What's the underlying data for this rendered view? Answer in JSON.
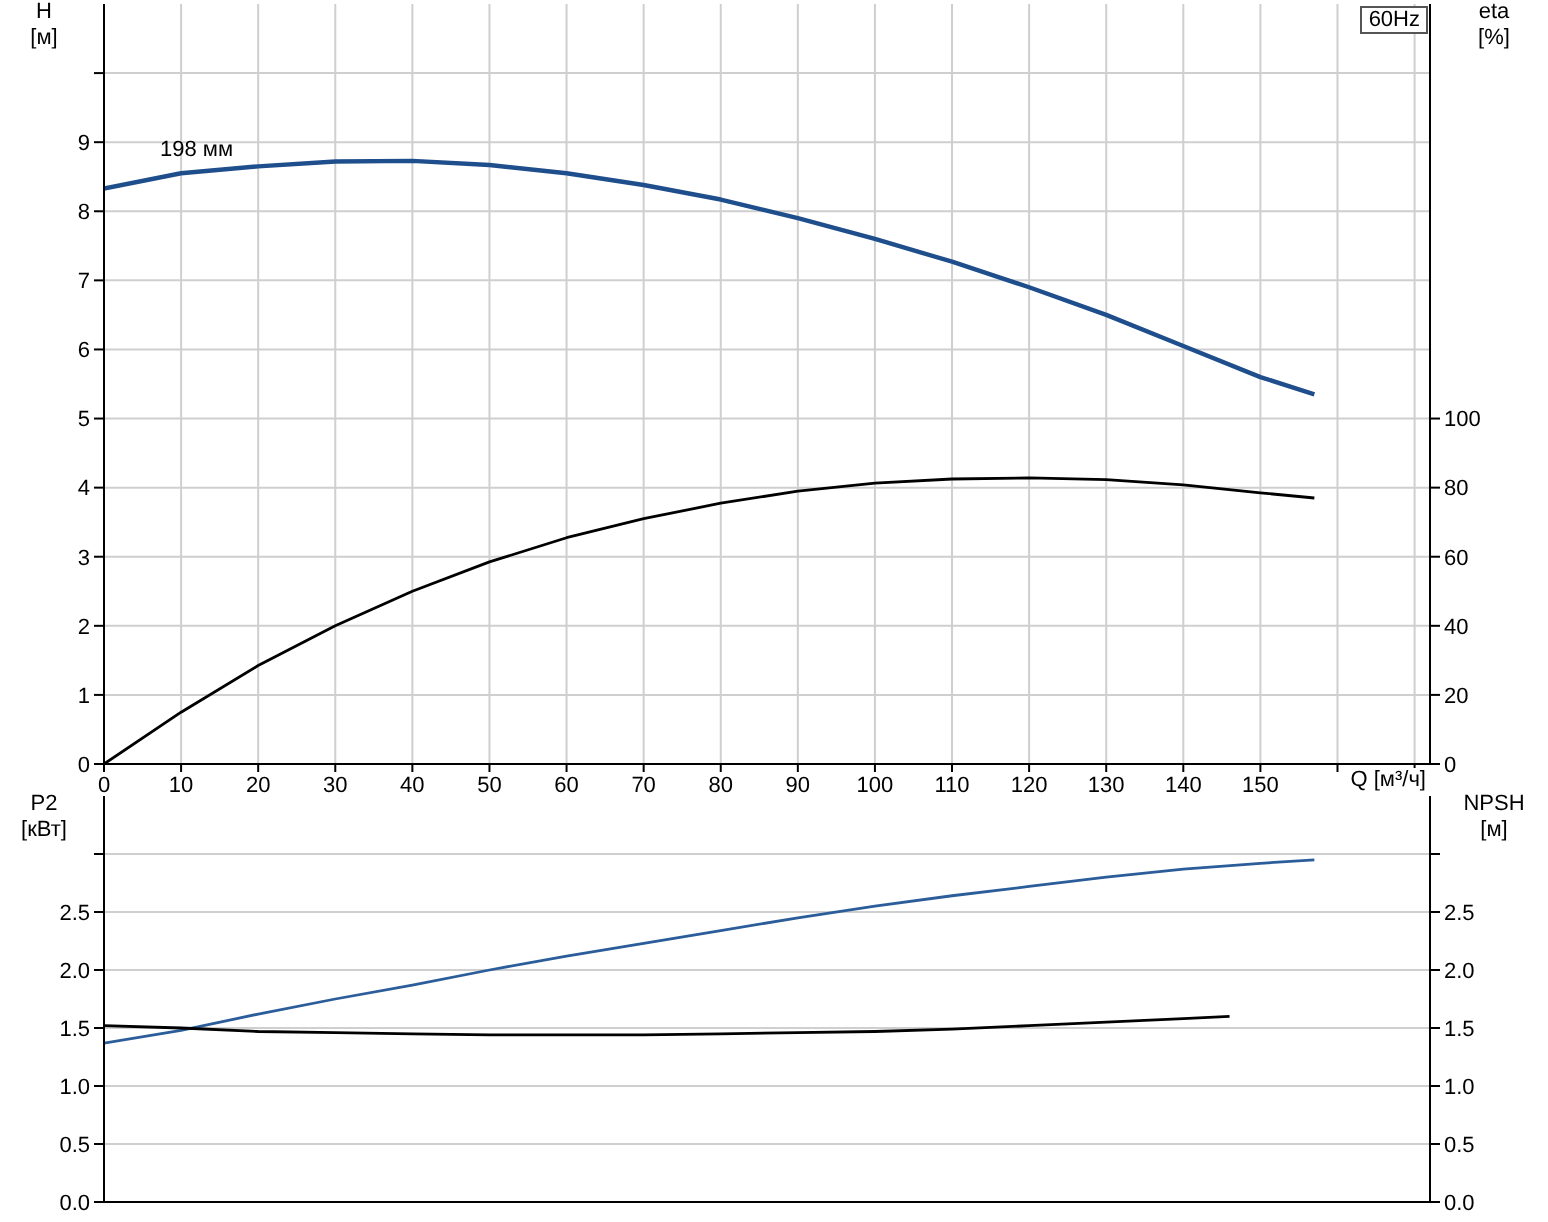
{
  "chart_data": [
    {
      "type": "line",
      "title": "60Hz",
      "xlabel": "Q [м³/ч]",
      "ylabel": "H [м]",
      "y2label": "eta [%]",
      "annotations": [
        {
          "text": "198 мм",
          "x": 12,
          "y": 8.65
        }
      ],
      "xlim": [
        0,
        172
      ],
      "xticks": [
        0,
        10,
        20,
        30,
        40,
        50,
        60,
        70,
        80,
        90,
        100,
        110,
        120,
        130,
        140,
        150,
        {
          "value": 160,
          "label": null
        },
        {
          "value": 170,
          "label": null
        }
      ],
      "ylim": [
        0,
        11
      ],
      "yticks": [
        0,
        1,
        2,
        3,
        4,
        5,
        6,
        7,
        8,
        9,
        {
          "value": 10,
          "label": null
        }
      ],
      "y2lim": [
        0,
        220
      ],
      "y2ticks": [
        0,
        20,
        40,
        60,
        80,
        100
      ],
      "grid": true,
      "marker": "none",
      "line_style": "solid",
      "series": [
        {
          "color": "#1f4e8c",
          "x": [
            0,
            10,
            20,
            30,
            40,
            50,
            60,
            70,
            80,
            90,
            100,
            110,
            120,
            130,
            140,
            150,
            157
          ],
          "values": [
            8.33,
            8.55,
            8.65,
            8.72,
            8.73,
            8.67,
            8.55,
            8.38,
            8.17,
            7.9,
            7.6,
            7.27,
            6.9,
            6.5,
            6.05,
            5.6,
            5.35
          ]
        },
        {
          "color": "#000000",
          "axis": "y2",
          "x": [
            0,
            10,
            20,
            30,
            40,
            50,
            60,
            70,
            80,
            90,
            100,
            110,
            120,
            130,
            140,
            150,
            157
          ],
          "values": [
            0,
            15,
            28.5,
            40,
            50,
            58.5,
            65.5,
            71,
            75.5,
            79,
            81.3,
            82.5,
            82.8,
            82.3,
            80.8,
            78.5,
            77
          ]
        }
      ]
    },
    {
      "type": "line",
      "ylabel": "P2 [кВт]",
      "y2label": "NPSH [м]",
      "xlim": [
        0,
        172
      ],
      "xticks": [
        0,
        10,
        20,
        30,
        40,
        50,
        60,
        70,
        80,
        90,
        100,
        110,
        120,
        130,
        140,
        150,
        160,
        170
      ],
      "ylim": [
        0,
        3.5
      ],
      "yticks": [
        {
          "value": 0,
          "label": "0.0"
        },
        0.5,
        {
          "value": 1,
          "label": "1.0"
        },
        1.5,
        {
          "value": 2,
          "label": "2.0"
        },
        2.5,
        {
          "value": 3,
          "label": null
        }
      ],
      "y2lim": [
        0,
        3.5
      ],
      "y2ticks": [
        {
          "value": 0,
          "label": "0.0"
        },
        0.5,
        {
          "value": 1,
          "label": "1.0"
        },
        1.5,
        {
          "value": 2,
          "label": "2.0"
        },
        2.5,
        {
          "value": 3,
          "label": null
        }
      ],
      "tick_labels": "y",
      "grid": true,
      "marker": "none",
      "line_style": "solid",
      "series": [
        {
          "color": "#2b5d9a",
          "x": [
            0,
            10,
            20,
            30,
            40,
            50,
            60,
            70,
            80,
            90,
            100,
            110,
            120,
            130,
            140,
            150,
            157
          ],
          "values": [
            1.37,
            1.48,
            1.62,
            1.75,
            1.87,
            2.0,
            2.12,
            2.23,
            2.34,
            2.45,
            2.55,
            2.64,
            2.72,
            2.8,
            2.87,
            2.92,
            2.95
          ]
        },
        {
          "color": "#000000",
          "axis": "y2",
          "x": [
            0,
            10,
            20,
            30,
            40,
            50,
            60,
            70,
            80,
            90,
            100,
            110,
            120,
            130,
            140,
            146
          ],
          "values": [
            1.52,
            1.5,
            1.47,
            1.46,
            1.45,
            1.44,
            1.44,
            1.44,
            1.45,
            1.46,
            1.47,
            1.49,
            1.52,
            1.55,
            1.58,
            1.6
          ]
        }
      ]
    }
  ]
}
